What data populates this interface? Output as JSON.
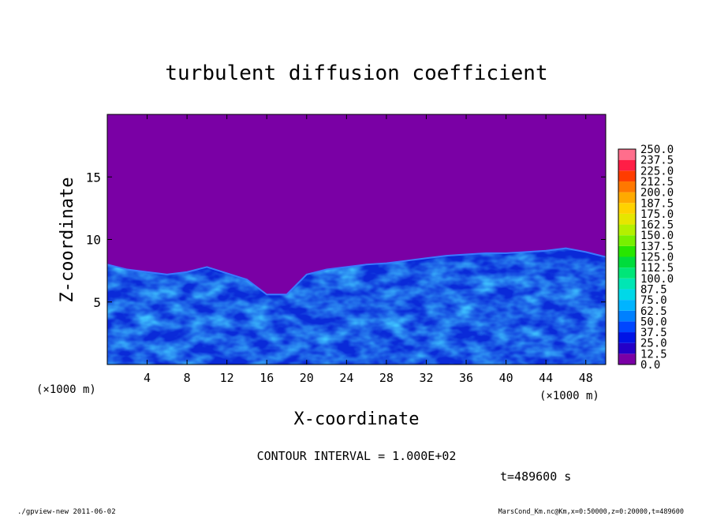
{
  "chart_data": {
    "type": "heatmap",
    "title": "turbulent diffusion coefficient",
    "xlabel": "X-coordinate",
    "ylabel": "Z-coordinate",
    "x_unit": "(×1000 m)",
    "z_unit": "(×1000 m)",
    "xlim": [
      0,
      50
    ],
    "ylim": [
      0,
      20
    ],
    "x_ticks": [
      "4",
      "8",
      "12",
      "16",
      "20",
      "24",
      "28",
      "32",
      "36",
      "40",
      "44",
      "48"
    ],
    "y_ticks": [
      "5",
      "10",
      "15"
    ],
    "x_tick_values": [
      4,
      8,
      12,
      16,
      20,
      24,
      28,
      32,
      36,
      40,
      44,
      48
    ],
    "y_tick_values": [
      5,
      10,
      15
    ],
    "colorbar": {
      "levels": [
        "0.0",
        "12.5",
        "25.0",
        "37.5",
        "50.0",
        "62.5",
        "75.0",
        "87.5",
        "100.0",
        "112.5",
        "125.0",
        "137.5",
        "150.0",
        "162.5",
        "175.0",
        "187.5",
        "200.0",
        "212.5",
        "225.0",
        "237.5",
        "250.0"
      ],
      "colors": [
        "#7a00a5",
        "#2400c8",
        "#0014e6",
        "#0046ff",
        "#0080ff",
        "#00b4ff",
        "#00d8e8",
        "#00e6b4",
        "#00e678",
        "#00dc3c",
        "#28e600",
        "#78f000",
        "#b4f000",
        "#e6e600",
        "#ffd200",
        "#ffaa00",
        "#ff7800",
        "#ff3c00",
        "#ff1e46",
        "#ff6e8c"
      ]
    },
    "boundary_layer_top": {
      "x": [
        0,
        2,
        4,
        6,
        8,
        10,
        12,
        14,
        16,
        18,
        20,
        22,
        24,
        26,
        28,
        30,
        32,
        34,
        36,
        38,
        40,
        42,
        44,
        46,
        48,
        50
      ],
      "z": [
        8.0,
        7.6,
        7.4,
        7.2,
        7.4,
        7.8,
        7.3,
        6.8,
        5.6,
        5.6,
        7.2,
        7.6,
        7.8,
        8.0,
        8.1,
        8.3,
        8.5,
        8.7,
        8.8,
        8.9,
        8.9,
        9.0,
        9.1,
        9.3,
        9.0,
        8.6
      ]
    },
    "annotations": {
      "contour_interval": "CONTOUR INTERVAL = 1.000E+02",
      "time": "t=489600 s",
      "footer_left": "./gpview-new  2011-06-02",
      "footer_right": "MarsCond_Km.nc@Km,x=0:50000,z=0:20000,t=489600"
    }
  }
}
